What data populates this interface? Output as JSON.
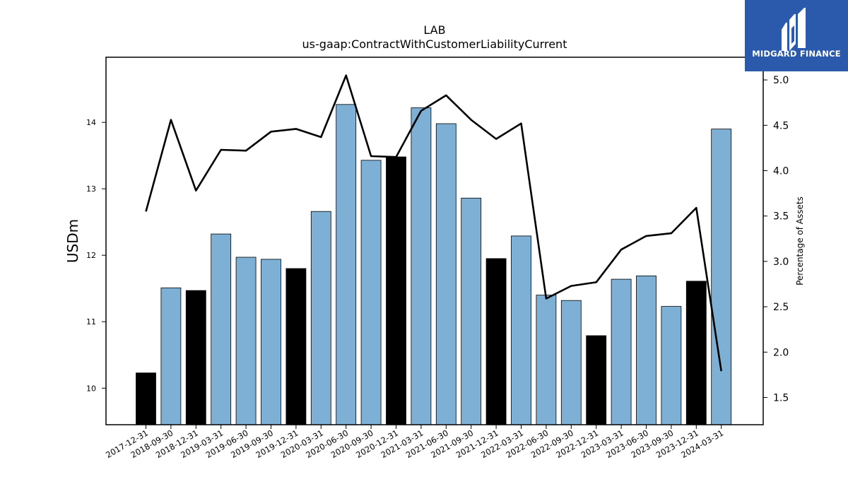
{
  "chart_data": {
    "type": "bar",
    "title": "LAB",
    "subtitle": "us-gaap:ContractWithCustomerLiabilityCurrent",
    "ylabel": "USDm",
    "y2label": "Percentage of Assets",
    "categories": [
      "2017-12-31",
      "2018-09-30",
      "2018-12-31",
      "2019-03-31",
      "2019-06-30",
      "2019-09-30",
      "2019-12-31",
      "2020-03-31",
      "2020-06-30",
      "2020-09-30",
      "2020-12-31",
      "2021-03-31",
      "2021-06-30",
      "2021-09-30",
      "2021-12-31",
      "2022-03-31",
      "2022-06-30",
      "2022-09-30",
      "2022-12-31",
      "2023-03-31",
      "2023-06-30",
      "2023-09-30",
      "2023-12-31",
      "2024-03-31"
    ],
    "series": [
      {
        "type": "bar",
        "axis": "left",
        "values": [
          10.23,
          11.51,
          11.47,
          12.32,
          11.97,
          11.94,
          11.8,
          12.66,
          14.27,
          13.43,
          13.48,
          14.22,
          13.98,
          12.86,
          11.95,
          12.29,
          11.4,
          11.32,
          10.79,
          11.64,
          11.69,
          11.23,
          11.61,
          13.9
        ],
        "colors": [
          "#000000",
          "#7eb0d5",
          "#000000",
          "#7eb0d5",
          "#7eb0d5",
          "#7eb0d5",
          "#000000",
          "#7eb0d5",
          "#7eb0d5",
          "#7eb0d5",
          "#000000",
          "#7eb0d5",
          "#7eb0d5",
          "#7eb0d5",
          "#000000",
          "#7eb0d5",
          "#7eb0d5",
          "#7eb0d5",
          "#000000",
          "#7eb0d5",
          "#7eb0d5",
          "#7eb0d5",
          "#000000",
          "#7eb0d5"
        ]
      },
      {
        "type": "line",
        "axis": "right",
        "color": "#000000",
        "values": [
          3.55,
          4.56,
          3.78,
          4.23,
          4.22,
          4.43,
          4.46,
          4.37,
          5.05,
          4.16,
          4.15,
          4.66,
          4.83,
          4.56,
          4.35,
          4.52,
          2.59,
          2.73,
          2.77,
          3.13,
          3.28,
          3.31,
          3.59,
          1.79
        ]
      }
    ],
    "ylim": [
      9.45,
      14.98
    ],
    "y2lim": [
      1.2,
      5.25
    ],
    "yticks": [
      10,
      11,
      12,
      13,
      14
    ],
    "y2ticks": [
      1.5,
      2.0,
      2.5,
      3.0,
      3.5,
      4.0,
      4.5,
      5.0
    ],
    "grid": false
  },
  "logo": {
    "text": "MIDGARD FINANCE",
    "color": "#2b5aad"
  }
}
